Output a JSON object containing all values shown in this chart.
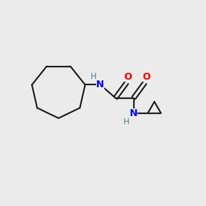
{
  "background_color": "#ebebeb",
  "bond_color": "#1a1a1a",
  "nitrogen_color": "#0000ff",
  "oxygen_color": "#ff0000",
  "hydrogen_color": "#408080",
  "figure_size": [
    3.0,
    3.0
  ],
  "dpi": 100,
  "xlim": [
    0,
    10
  ],
  "ylim": [
    0,
    10
  ]
}
